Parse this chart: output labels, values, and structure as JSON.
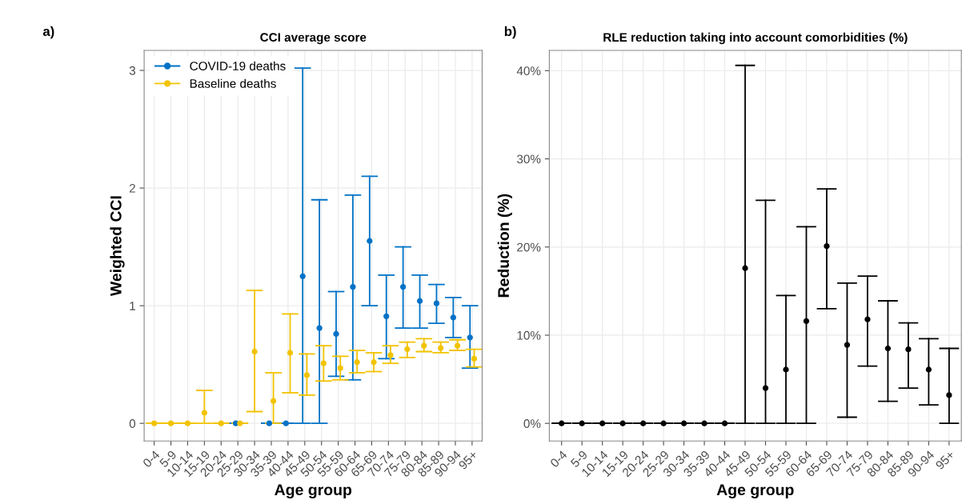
{
  "chart_data": [
    {
      "type": "scatter",
      "title": "CCI average score",
      "xlabel": "Age group",
      "ylabel": "Weighted CCI",
      "annotations": [
        "a)"
      ],
      "categories": [
        "0-4",
        "5-9",
        "10-14",
        "15-19",
        "20-24",
        "25-29",
        "30-34",
        "35-39",
        "40-44",
        "45-49",
        "50-54",
        "55-59",
        "60-64",
        "65-69",
        "70-74",
        "75-79",
        "80-84",
        "85-89",
        "90-94",
        "95+"
      ],
      "series": [
        {
          "name": "COVID-19 deaths",
          "color": "#0072c6",
          "values": [
            null,
            null,
            null,
            null,
            null,
            0,
            null,
            0,
            0,
            1.25,
            0.81,
            0.76,
            1.16,
            1.55,
            0.91,
            1.16,
            1.04,
            1.02,
            0.9,
            0.73
          ],
          "errors": [
            null,
            null,
            null,
            null,
            null,
            [
              0,
              0
            ],
            null,
            [
              0,
              0
            ],
            [
              0,
              0
            ],
            [
              0,
              3.02
            ],
            [
              0,
              1.9
            ],
            [
              0.4,
              1.12
            ],
            [
              0.37,
              1.94
            ],
            [
              1.0,
              2.1
            ],
            [
              0.55,
              1.26
            ],
            [
              0.81,
              1.5
            ],
            [
              0.81,
              1.26
            ],
            [
              0.85,
              1.18
            ],
            [
              0.73,
              1.07
            ],
            [
              0.47,
              1.0
            ]
          ]
        },
        {
          "name": "Baseline deaths",
          "color": "#f2c300",
          "values": [
            0,
            0,
            0,
            0.09,
            0,
            0,
            0.61,
            0.19,
            0.6,
            0.41,
            0.51,
            0.47,
            0.52,
            0.52,
            0.58,
            0.63,
            0.66,
            0.64,
            0.66,
            0.55
          ],
          "errors": [
            [
              0,
              0
            ],
            [
              0,
              0
            ],
            [
              0,
              0
            ],
            [
              0,
              0.28
            ],
            [
              0,
              0
            ],
            [
              0,
              0
            ],
            [
              0.1,
              1.13
            ],
            [
              0,
              0.43
            ],
            [
              0.26,
              0.93
            ],
            [
              0.24,
              0.59
            ],
            [
              0.36,
              0.66
            ],
            [
              0.37,
              0.57
            ],
            [
              0.43,
              0.62
            ],
            [
              0.44,
              0.6
            ],
            [
              0.51,
              0.66
            ],
            [
              0.56,
              0.69
            ],
            [
              0.61,
              0.72
            ],
            [
              0.6,
              0.69
            ],
            [
              0.62,
              0.71
            ],
            [
              0.48,
              0.63
            ]
          ]
        }
      ],
      "ylim": [
        -0.15,
        3.17
      ],
      "yticks": [
        0,
        1,
        2,
        3
      ],
      "grid": true,
      "legend": "top left",
      "marker": "circle"
    },
    {
      "type": "scatter",
      "title": "RLE reduction taking into account comorbidities (%)",
      "xlabel": "Age group",
      "ylabel": "Reduction (%)",
      "annotations": [
        "b)"
      ],
      "categories": [
        "0-4",
        "5-9",
        "10-14",
        "15-19",
        "20-24",
        "25-29",
        "30-34",
        "35-39",
        "40-44",
        "45-49",
        "50-54",
        "55-59",
        "60-64",
        "65-69",
        "70-74",
        "75-79",
        "80-84",
        "85-89",
        "90-94",
        "95+"
      ],
      "series": [
        {
          "color": "#000000",
          "values": [
            0,
            0,
            0,
            0,
            0,
            0,
            0,
            0,
            0,
            17.6,
            4.0,
            6.1,
            11.6,
            20.1,
            8.9,
            11.8,
            8.5,
            8.4,
            6.1,
            3.2
          ],
          "errors": [
            [
              0,
              0
            ],
            [
              0,
              0
            ],
            [
              0,
              0
            ],
            [
              0,
              0
            ],
            [
              0,
              0
            ],
            [
              0,
              0
            ],
            [
              0,
              0
            ],
            [
              0,
              0
            ],
            [
              0,
              0
            ],
            [
              0,
              40.6
            ],
            [
              0,
              25.3
            ],
            [
              0,
              14.5
            ],
            [
              0,
              22.3
            ],
            [
              13.0,
              26.6
            ],
            [
              0.7,
              15.9
            ],
            [
              6.5,
              16.7
            ],
            [
              2.5,
              13.9
            ],
            [
              4.0,
              11.4
            ],
            [
              2.1,
              9.6
            ],
            [
              0,
              8.5
            ]
          ]
        }
      ],
      "ylim": [
        -2,
        42.3
      ],
      "yticks": [
        {
          "value": 0,
          "label": "0%"
        },
        {
          "value": 10,
          "label": "10%"
        },
        {
          "value": 20,
          "label": "20%"
        },
        {
          "value": 30,
          "label": "30%"
        },
        {
          "value": 40,
          "label": "40%"
        }
      ],
      "grid": true,
      "marker": "circle"
    }
  ]
}
